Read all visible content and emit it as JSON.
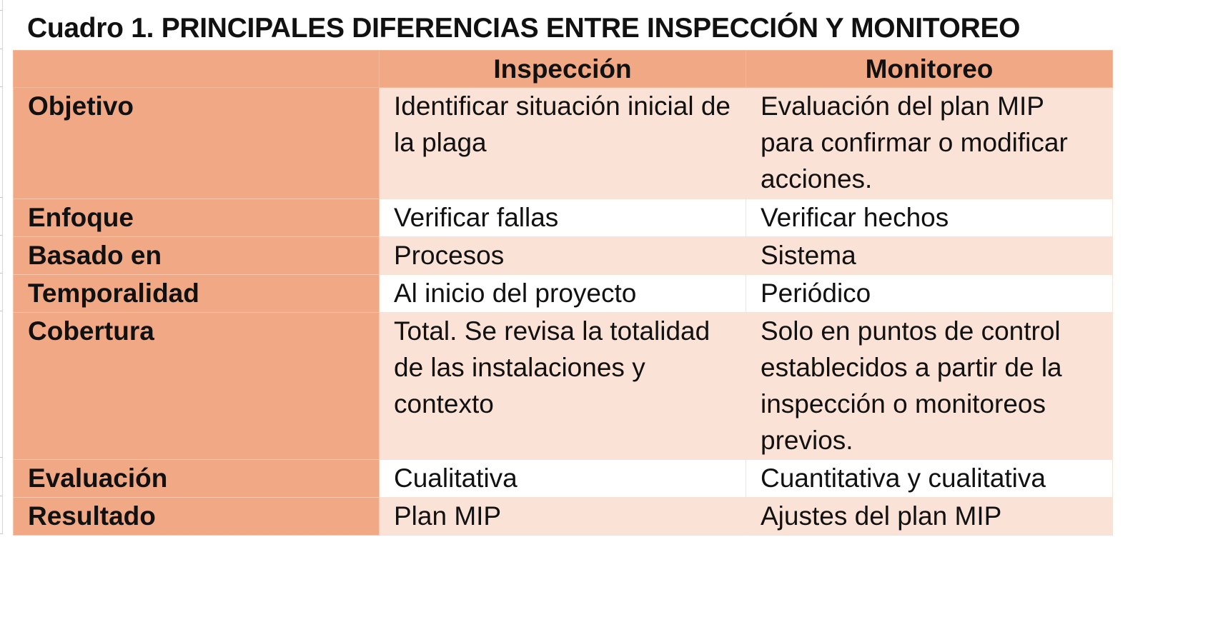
{
  "title": "Cuadro 1. PRINCIPALES DIFERENCIAS ENTRE INSPECCIÓN Y MONITOREO",
  "table": {
    "headers": [
      "",
      "Inspección",
      "Monitoreo"
    ],
    "rows": [
      {
        "label": "Objetivo",
        "inspeccion": "Identificar situación inicial de la plaga",
        "monitoreo": "Evaluación del plan MIP para confirmar o modificar acciones."
      },
      {
        "label": "Enfoque",
        "inspeccion": "Verificar fallas",
        "monitoreo": "Verificar hechos"
      },
      {
        "label": "Basado en",
        "inspeccion": "Procesos",
        "monitoreo": "Sistema"
      },
      {
        "label": "Temporalidad",
        "inspeccion": "Al inicio del proyecto",
        "monitoreo": "Periódico"
      },
      {
        "label": "Cobertura",
        "inspeccion": "Total. Se revisa la totalidad de las instalaciones y contexto",
        "monitoreo": "Solo en puntos de control establecidos a partir de la inspección o monitoreos previos."
      },
      {
        "label": "Evaluación",
        "inspeccion": "Cualitativa",
        "monitoreo": "Cuantitativa y cualitativa"
      },
      {
        "label": "Resultado",
        "inspeccion": "Plan MIP",
        "monitoreo": "Ajustes del plan MIP"
      }
    ]
  },
  "colors": {
    "header_fill": "#f1a985",
    "row_shade": "#fbe2d6",
    "row_plain": "#ffffff"
  }
}
